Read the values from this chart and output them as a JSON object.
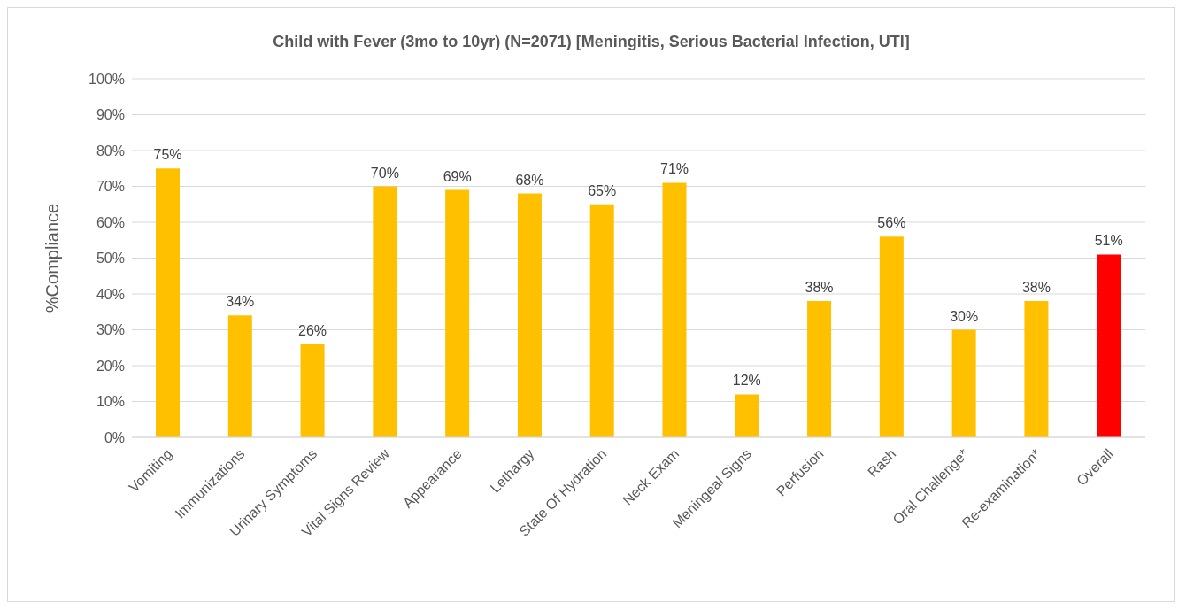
{
  "chart_data": {
    "type": "bar",
    "title": "Child with Fever (3mo to 10yr) (N=2071) [Meningitis, Serious Bacterial Infection, UTI]",
    "ylabel": "%Compliance",
    "categories": [
      "Vomiting",
      "Immunizations",
      "Urinary Symptoms",
      "Vital Signs Review",
      "Appearance",
      "Lethargy",
      "State Of Hydration",
      "Neck Exam",
      "Meningeal Signs",
      "Perfusion",
      "Rash",
      "Oral Challenge*",
      "Re-examination*",
      "Overall"
    ],
    "values": [
      75,
      34,
      26,
      70,
      69,
      68,
      65,
      71,
      12,
      38,
      56,
      30,
      38,
      51
    ],
    "value_labels": [
      "75%",
      "34%",
      "26%",
      "70%",
      "69%",
      "68%",
      "65%",
      "71%",
      "12%",
      "38%",
      "56%",
      "30%",
      "38%",
      "51%"
    ],
    "colors": [
      "#ffc000",
      "#ffc000",
      "#ffc000",
      "#ffc000",
      "#ffc000",
      "#ffc000",
      "#ffc000",
      "#ffc000",
      "#ffc000",
      "#ffc000",
      "#ffc000",
      "#ffc000",
      "#ffc000",
      "#ff0000"
    ],
    "ylim": [
      0,
      100
    ],
    "yticks": [
      {
        "value": 0,
        "label": "0%"
      },
      {
        "value": 10,
        "label": "10%"
      },
      {
        "value": 20,
        "label": "20%"
      },
      {
        "value": 30,
        "label": "30%"
      },
      {
        "value": 40,
        "label": "40%"
      },
      {
        "value": 50,
        "label": "50%"
      },
      {
        "value": 60,
        "label": "60%"
      },
      {
        "value": 70,
        "label": "70%"
      },
      {
        "value": 80,
        "label": "80%"
      },
      {
        "value": 90,
        "label": "90%"
      },
      {
        "value": 100,
        "label": "100%"
      }
    ],
    "grid": "y"
  }
}
